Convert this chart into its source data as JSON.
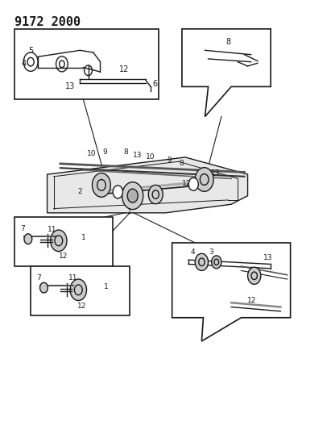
{
  "title": "9172 2000",
  "bg_color": "#ffffff",
  "line_color": "#1a1a1a",
  "title_fontsize": 11,
  "title_font": "monospace",
  "fig_width": 4.11,
  "fig_height": 5.33,
  "dpi": 100
}
